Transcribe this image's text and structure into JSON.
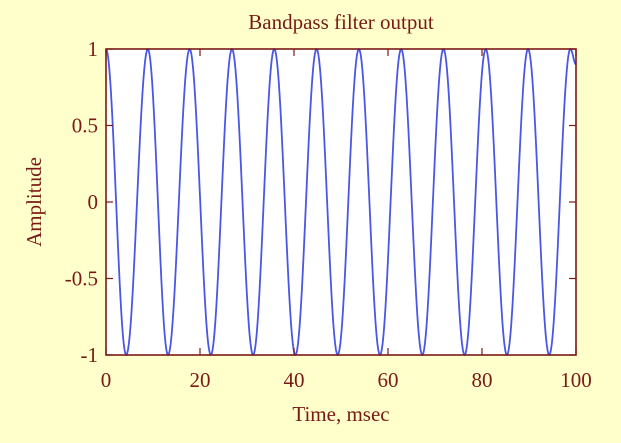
{
  "colors": {
    "background": "#ffffcc",
    "plot_area": "#ffffff",
    "axes_border": "#7a1a16",
    "text": "#7a1a16",
    "line": "#4a56e6"
  },
  "chart_data": {
    "type": "line",
    "title": "Bandpass filter output",
    "xlabel": "Time, msec",
    "ylabel": "Amplitude",
    "xlim": [
      0,
      100
    ],
    "ylim": [
      -1,
      1
    ],
    "x_ticks": [
      0,
      20,
      40,
      60,
      80,
      100
    ],
    "x_tick_labels": [
      "0",
      "20",
      "40",
      "60",
      "80",
      "100"
    ],
    "y_ticks": [
      1,
      0.5,
      0,
      -0.5,
      -1
    ],
    "y_tick_labels": [
      "1",
      "0.5",
      "0",
      "-0.5",
      "-1"
    ],
    "grid": false,
    "legend": "none",
    "series": [
      {
        "x": [
          0,
          4.3,
          8.9,
          13.2,
          17.8,
          22.3,
          26.8,
          31.3,
          35.8,
          40.3,
          44.8,
          49.3,
          53.8,
          58.3,
          62.8,
          67.3,
          71.8,
          76.3,
          80.8,
          85.3,
          89.8,
          94.3,
          98.8,
          100
        ],
        "y": [
          1,
          -1,
          1,
          -1,
          1,
          -1,
          1,
          -1,
          1,
          -1,
          1,
          -1,
          1,
          -1,
          1,
          -1,
          1,
          -1,
          1,
          -1,
          1,
          -1,
          1,
          0.9
        ]
      }
    ]
  }
}
